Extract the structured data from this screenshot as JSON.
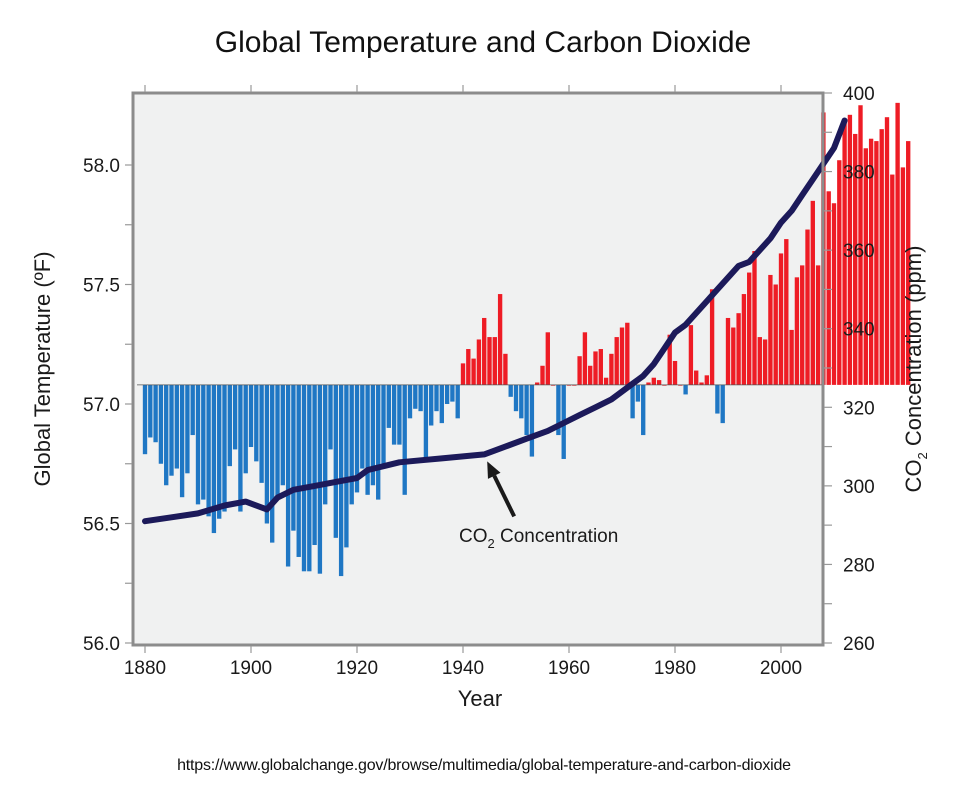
{
  "chart_data": {
    "type": "bar",
    "title": "Global Temperature and Carbon Dioxide",
    "xlabel": "Year",
    "ylabel": "Global Temperature (ºF)",
    "y2label_parts": [
      "CO",
      "2",
      " Concentration (ppm)"
    ],
    "xlim": [
      1878,
      2015
    ],
    "ylim": [
      56.0,
      58.3
    ],
    "y2lim": [
      260,
      400
    ],
    "baseline": 57.08,
    "grid": false,
    "legend": "none",
    "x_ticks": [
      1880,
      1900,
      1920,
      1940,
      1960,
      1980,
      2000
    ],
    "x_tick_labels": [
      "1880",
      "1900",
      "1920",
      "1940",
      "1960",
      "1980",
      "2000"
    ],
    "y_ticks": [
      56.0,
      56.5,
      57.0,
      57.5,
      58.0
    ],
    "y_tick_labels": [
      "56.0",
      "56.5",
      "57.0",
      "57.5",
      "58.0"
    ],
    "y_minor_ticks": [
      56.25,
      56.75,
      57.25,
      57.75
    ],
    "y2_ticks": [
      260,
      280,
      300,
      320,
      340,
      360,
      380,
      400
    ],
    "y2_tick_labels": [
      "260",
      "280",
      "300",
      "320",
      "340",
      "360",
      "380",
      "400"
    ],
    "y2_minor_ticks": [
      270,
      290,
      310,
      330,
      350,
      370,
      390
    ],
    "colors": {
      "above": "#ee1c25",
      "below": "#1f77c4",
      "co2": "#1c1a5a",
      "plot_bg": "#f0f1f1",
      "frame": "#8c8c8c"
    },
    "series": [
      {
        "name": "Global Temperature",
        "kind": "bar",
        "axis": "left",
        "start_year": 1880,
        "values": [
          56.79,
          56.86,
          56.84,
          56.75,
          56.66,
          56.7,
          56.73,
          56.61,
          56.71,
          56.87,
          56.58,
          56.6,
          56.53,
          56.46,
          56.52,
          56.55,
          56.74,
          56.81,
          56.55,
          56.71,
          56.82,
          56.76,
          56.67,
          56.5,
          56.42,
          56.61,
          56.66,
          56.32,
          56.47,
          56.36,
          56.3,
          56.3,
          56.41,
          56.29,
          56.58,
          56.81,
          56.44,
          56.28,
          56.4,
          56.58,
          56.63,
          56.73,
          56.62,
          56.66,
          56.6,
          56.73,
          56.9,
          56.83,
          56.83,
          56.62,
          56.94,
          56.98,
          56.97,
          56.77,
          56.91,
          56.97,
          56.92,
          57.0,
          57.01,
          56.94,
          57.17,
          57.23,
          57.19,
          57.27,
          57.36,
          57.28,
          57.28,
          57.46,
          57.21,
          57.03,
          56.97,
          56.94,
          56.87,
          56.78,
          57.09,
          57.16,
          57.3,
          57.08,
          56.87,
          56.77,
          57.08,
          57.08,
          57.2,
          57.3,
          57.16,
          57.22,
          57.23,
          57.11,
          57.21,
          57.28,
          57.32,
          57.34,
          56.94,
          57.01,
          56.87,
          57.09,
          57.11,
          57.1,
          57.08,
          57.29,
          57.18,
          57.08,
          57.04,
          57.33,
          57.14,
          57.09,
          57.12,
          57.48,
          56.96,
          56.92,
          57.36,
          57.32,
          57.38,
          57.46,
          57.55,
          57.64,
          57.28,
          57.27,
          57.54,
          57.5,
          57.63,
          57.69,
          57.31,
          57.53,
          57.58,
          57.73,
          57.85,
          57.58,
          58.22,
          57.89,
          57.84,
          58.02,
          58.18,
          58.21,
          58.13,
          58.25,
          58.07,
          58.11,
          58.1,
          58.15,
          58.2,
          57.96,
          58.26,
          57.99,
          58.1
        ]
      },
      {
        "name": "CO2 Concentration",
        "kind": "line",
        "axis": "right",
        "x": [
          1880,
          1885,
          1890,
          1895,
          1899,
          1903,
          1905,
          1908,
          1912,
          1916,
          1920,
          1922,
          1925,
          1928,
          1932,
          1936,
          1940,
          1944,
          1948,
          1952,
          1956,
          1959,
          1962,
          1965,
          1968,
          1970,
          1972,
          1974,
          1976,
          1978,
          1980,
          1982,
          1984,
          1986,
          1988,
          1990,
          1992,
          1994,
          1996,
          1998,
          2000,
          2002,
          2004,
          2006,
          2008,
          2010,
          2012
        ],
        "values": [
          291,
          292,
          293,
          295,
          296,
          294,
          297,
          299,
          300,
          301,
          302,
          304,
          305,
          306,
          306.5,
          307,
          307.5,
          308,
          310,
          312,
          314,
          316,
          318,
          320,
          322,
          324,
          326,
          328,
          331,
          335,
          339,
          341,
          344,
          347,
          350,
          353,
          356,
          357,
          360,
          363,
          367,
          370,
          374,
          378,
          382,
          386,
          393
        ]
      }
    ],
    "annotations": [
      {
        "text_parts": [
          "CO",
          "2",
          " Concentration"
        ],
        "points_to_year": 1944,
        "points_to_value": 308
      }
    ]
  },
  "source_url": "https://www.globalchange.gov/browse/multimedia/global-temperature-and-carbon-dioxide"
}
